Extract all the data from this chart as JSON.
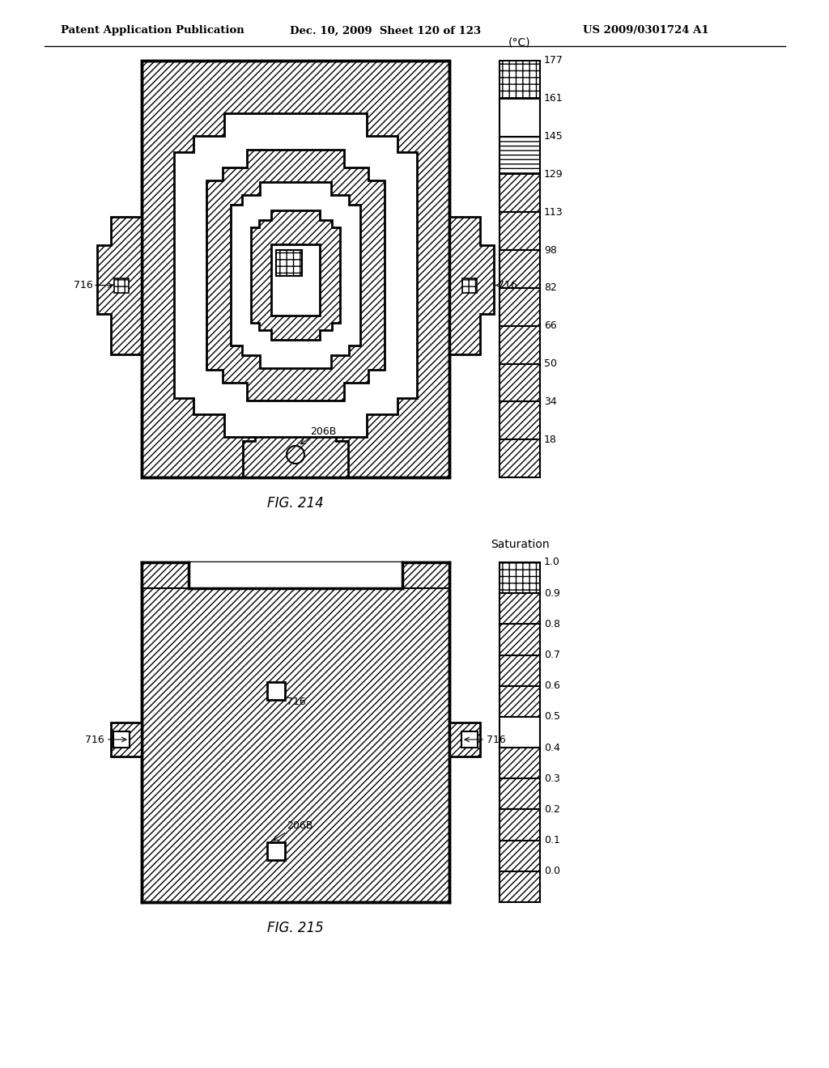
{
  "header_left": "Patent Application Publication",
  "header_mid": "Dec. 10, 2009  Sheet 120 of 123",
  "header_right": "US 2009/0301724 A1",
  "fig1_label": "FIG. 214",
  "fig2_label": "FIG. 215",
  "colorbar1_title": "(°C)",
  "colorbar1_labels": [
    "177",
    "161",
    "145",
    "129",
    "113",
    "98",
    "82",
    "66",
    "50",
    "34",
    "18"
  ],
  "colorbar1_patterns": [
    "grid",
    "white",
    "vlight",
    "////",
    "////",
    "////",
    "////",
    "////",
    "////",
    "////",
    "////"
  ],
  "colorbar2_title": "Saturation",
  "colorbar2_labels": [
    "1.0",
    "0.9",
    "0.8",
    "0.7",
    "0.6",
    "0.5",
    "0.4",
    "0.3",
    "0.2",
    "0.1",
    "0.0"
  ],
  "colorbar2_patterns": [
    "grid",
    "////",
    "////",
    "////",
    "////",
    "white",
    "////",
    "////",
    "////",
    "////",
    "////"
  ],
  "label_716": "716",
  "label_206B": "206B",
  "bg_color": "#ffffff"
}
